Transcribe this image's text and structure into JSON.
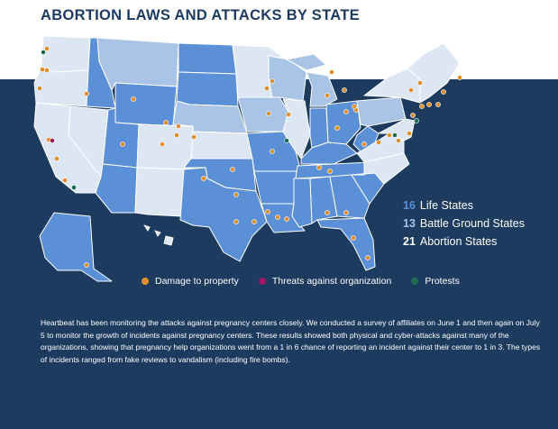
{
  "title": "ABORTION LAWS AND ATTACKS BY STATE",
  "stats": [
    {
      "count": "16",
      "label": "Life States",
      "color": "#5b8fd6"
    },
    {
      "count": "13",
      "label": "Battle Ground States",
      "color": "#a8c4e8"
    },
    {
      "count": "21",
      "label": "Abortion States",
      "color": "#ffffff"
    }
  ],
  "legend": [
    {
      "label": "Damage to property",
      "color": "#e08f2a",
      "icon": "dot-icon"
    },
    {
      "label": "Threats against organization",
      "color": "#9b1c63",
      "icon": "dot-icon"
    },
    {
      "label": "Protests",
      "color": "#1e6b52",
      "icon": "dot-icon"
    }
  ],
  "paragraph": "Heartbeat has been monitoring the attacks against pregnancy centers closely. We conducted a survey of affiliates on June 1 and then again on July 5 to monitor the growth of incidents against pregnancy centers. These results showed both physical and cyber-attacks against many of the organizations, showing that pregnancy help organizations went from a 1 in 6 chance of reporting an incident against their center to 1 in 3. The types of incidents ranged from fake reviews to vandalism (including fire bombs).",
  "colors": {
    "life": "#5b8fd6",
    "battle": "#a9c4e7",
    "abortion": "#dde7f3",
    "background": "#1c3b5e",
    "title": "#1d3a63",
    "damage": "#e08f2a",
    "threat": "#9b1c63",
    "protest": "#1e6b52"
  }
}
